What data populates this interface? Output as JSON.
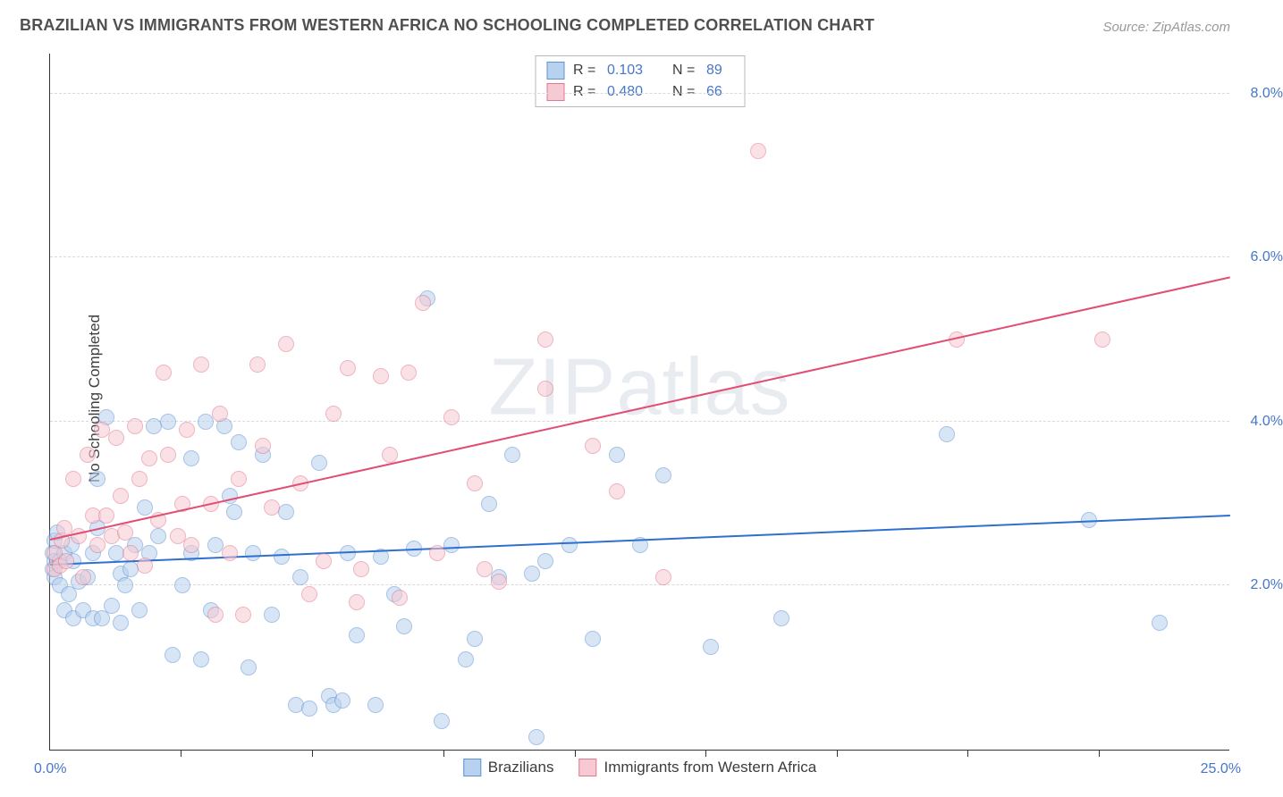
{
  "title": "BRAZILIAN VS IMMIGRANTS FROM WESTERN AFRICA NO SCHOOLING COMPLETED CORRELATION CHART",
  "source": "Source: ZipAtlas.com",
  "watermark": "ZIPatlas",
  "y_axis_label": "No Schooling Completed",
  "chart": {
    "type": "scatter",
    "xlim": [
      0,
      25
    ],
    "ylim": [
      0,
      8.5
    ],
    "x_ticks": [
      2.77,
      5.55,
      8.33,
      11.11,
      13.88,
      16.66,
      19.44,
      22.22
    ],
    "x_edge_labels": {
      "min": "0.0%",
      "max": "25.0%"
    },
    "y_grid": [
      {
        "value": 2.0,
        "label": "2.0%"
      },
      {
        "value": 4.0,
        "label": "4.0%"
      },
      {
        "value": 6.0,
        "label": "6.0%"
      },
      {
        "value": 8.0,
        "label": "8.0%"
      }
    ],
    "grid_color": "#d9d9d9",
    "axis_color": "#333333",
    "background": "#ffffff",
    "tick_label_color": "#4676c9",
    "tick_label_fontsize": 16,
    "title_color": "#51504f",
    "title_fontsize": 18,
    "marker_radius": 9,
    "marker_opacity": 0.55,
    "series": [
      {
        "name": "Brazilians",
        "fill": "#b8d1ee",
        "stroke": "#5e93d6",
        "trend": {
          "y_at_xmin": 2.25,
          "y_at_xmax": 2.85,
          "color": "#2f6fd0",
          "width": 2
        },
        "stats": {
          "R": "0.103",
          "N": "89"
        },
        "points": [
          [
            0.05,
            2.4
          ],
          [
            0.05,
            2.2
          ],
          [
            0.1,
            2.55
          ],
          [
            0.1,
            2.3
          ],
          [
            0.1,
            2.1
          ],
          [
            0.15,
            2.65
          ],
          [
            0.2,
            2.3
          ],
          [
            0.2,
            2.0
          ],
          [
            0.3,
            1.7
          ],
          [
            0.3,
            2.4
          ],
          [
            0.4,
            1.9
          ],
          [
            0.45,
            2.5
          ],
          [
            0.5,
            1.6
          ],
          [
            0.5,
            2.3
          ],
          [
            0.6,
            2.05
          ],
          [
            0.7,
            1.7
          ],
          [
            0.8,
            2.1
          ],
          [
            0.9,
            1.6
          ],
          [
            0.9,
            2.4
          ],
          [
            1.0,
            3.3
          ],
          [
            1.0,
            2.7
          ],
          [
            1.1,
            1.6
          ],
          [
            1.2,
            4.05
          ],
          [
            1.3,
            1.75
          ],
          [
            1.4,
            2.4
          ],
          [
            1.5,
            2.15
          ],
          [
            1.5,
            1.55
          ],
          [
            1.6,
            2.0
          ],
          [
            1.7,
            2.2
          ],
          [
            1.8,
            2.5
          ],
          [
            1.9,
            1.7
          ],
          [
            2.0,
            2.95
          ],
          [
            2.1,
            2.4
          ],
          [
            2.2,
            3.95
          ],
          [
            2.3,
            2.6
          ],
          [
            2.5,
            4.0
          ],
          [
            2.6,
            1.15
          ],
          [
            2.8,
            2.0
          ],
          [
            3.0,
            3.55
          ],
          [
            3.0,
            2.4
          ],
          [
            3.2,
            1.1
          ],
          [
            3.3,
            4.0
          ],
          [
            3.4,
            1.7
          ],
          [
            3.5,
            2.5
          ],
          [
            3.7,
            3.95
          ],
          [
            3.8,
            3.1
          ],
          [
            3.9,
            2.9
          ],
          [
            4.0,
            3.75
          ],
          [
            4.2,
            1.0
          ],
          [
            4.3,
            2.4
          ],
          [
            4.5,
            3.6
          ],
          [
            4.7,
            1.65
          ],
          [
            4.9,
            2.35
          ],
          [
            5.0,
            2.9
          ],
          [
            5.2,
            0.55
          ],
          [
            5.3,
            2.1
          ],
          [
            5.5,
            0.5
          ],
          [
            5.7,
            3.5
          ],
          [
            5.9,
            0.65
          ],
          [
            6.0,
            0.55
          ],
          [
            6.2,
            0.6
          ],
          [
            6.3,
            2.4
          ],
          [
            6.5,
            1.4
          ],
          [
            6.9,
            0.55
          ],
          [
            7.0,
            2.35
          ],
          [
            7.3,
            1.9
          ],
          [
            7.5,
            1.5
          ],
          [
            7.7,
            2.45
          ],
          [
            8.0,
            5.5
          ],
          [
            8.3,
            0.35
          ],
          [
            8.5,
            2.5
          ],
          [
            8.8,
            1.1
          ],
          [
            9.0,
            1.35
          ],
          [
            9.3,
            3.0
          ],
          [
            9.5,
            2.1
          ],
          [
            9.8,
            3.6
          ],
          [
            10.2,
            2.15
          ],
          [
            10.3,
            0.15
          ],
          [
            10.5,
            2.3
          ],
          [
            11.0,
            2.5
          ],
          [
            11.5,
            1.35
          ],
          [
            12.0,
            3.6
          ],
          [
            12.5,
            2.5
          ],
          [
            13.0,
            3.35
          ],
          [
            14.0,
            1.25
          ],
          [
            15.5,
            1.6
          ],
          [
            19.0,
            3.85
          ],
          [
            22.0,
            2.8
          ],
          [
            23.5,
            1.55
          ]
        ]
      },
      {
        "name": "Immigrants from Western Africa",
        "fill": "#f6c9d3",
        "stroke": "#e2788f",
        "trend": {
          "y_at_xmin": 2.55,
          "y_at_xmax": 5.75,
          "color": "#e14d73",
          "width": 2
        },
        "stats": {
          "R": "0.480",
          "N": "66"
        },
        "points": [
          [
            0.1,
            2.4
          ],
          [
            0.1,
            2.2
          ],
          [
            0.2,
            2.25
          ],
          [
            0.25,
            2.55
          ],
          [
            0.3,
            2.7
          ],
          [
            0.35,
            2.3
          ],
          [
            0.5,
            3.3
          ],
          [
            0.6,
            2.6
          ],
          [
            0.7,
            2.1
          ],
          [
            0.8,
            3.6
          ],
          [
            0.9,
            2.85
          ],
          [
            1.0,
            2.5
          ],
          [
            1.1,
            3.9
          ],
          [
            1.2,
            2.85
          ],
          [
            1.3,
            2.6
          ],
          [
            1.4,
            3.8
          ],
          [
            1.5,
            3.1
          ],
          [
            1.6,
            2.65
          ],
          [
            1.7,
            2.4
          ],
          [
            1.8,
            3.95
          ],
          [
            1.9,
            3.3
          ],
          [
            2.0,
            2.25
          ],
          [
            2.1,
            3.55
          ],
          [
            2.3,
            2.8
          ],
          [
            2.4,
            4.6
          ],
          [
            2.5,
            3.6
          ],
          [
            2.7,
            2.6
          ],
          [
            2.8,
            3.0
          ],
          [
            2.9,
            3.9
          ],
          [
            3.0,
            2.5
          ],
          [
            3.2,
            4.7
          ],
          [
            3.4,
            3.0
          ],
          [
            3.5,
            1.65
          ],
          [
            3.6,
            4.1
          ],
          [
            3.8,
            2.4
          ],
          [
            4.0,
            3.3
          ],
          [
            4.1,
            1.65
          ],
          [
            4.4,
            4.7
          ],
          [
            4.5,
            3.7
          ],
          [
            4.7,
            2.95
          ],
          [
            5.0,
            4.95
          ],
          [
            5.3,
            3.25
          ],
          [
            5.5,
            1.9
          ],
          [
            5.8,
            2.3
          ],
          [
            6.0,
            4.1
          ],
          [
            6.3,
            4.65
          ],
          [
            6.5,
            1.8
          ],
          [
            6.6,
            2.2
          ],
          [
            7.0,
            4.55
          ],
          [
            7.2,
            3.6
          ],
          [
            7.4,
            1.85
          ],
          [
            7.6,
            4.6
          ],
          [
            7.9,
            5.45
          ],
          [
            8.2,
            2.4
          ],
          [
            8.5,
            4.05
          ],
          [
            9.0,
            3.25
          ],
          [
            9.2,
            2.2
          ],
          [
            9.5,
            2.05
          ],
          [
            10.5,
            4.4
          ],
          [
            10.5,
            5.0
          ],
          [
            11.5,
            3.7
          ],
          [
            12.0,
            3.15
          ],
          [
            13.0,
            2.1
          ],
          [
            15.0,
            7.3
          ],
          [
            19.2,
            5.0
          ],
          [
            22.3,
            5.0
          ]
        ]
      }
    ],
    "legend_top": {
      "border": "#b9b9b9",
      "text_color": "#3c3c3c",
      "value_color": "#4676c9",
      "r_label": "R =",
      "n_label": "N ="
    },
    "legend_bottom_labels": [
      "Brazilians",
      "Immigrants from Western Africa"
    ]
  }
}
